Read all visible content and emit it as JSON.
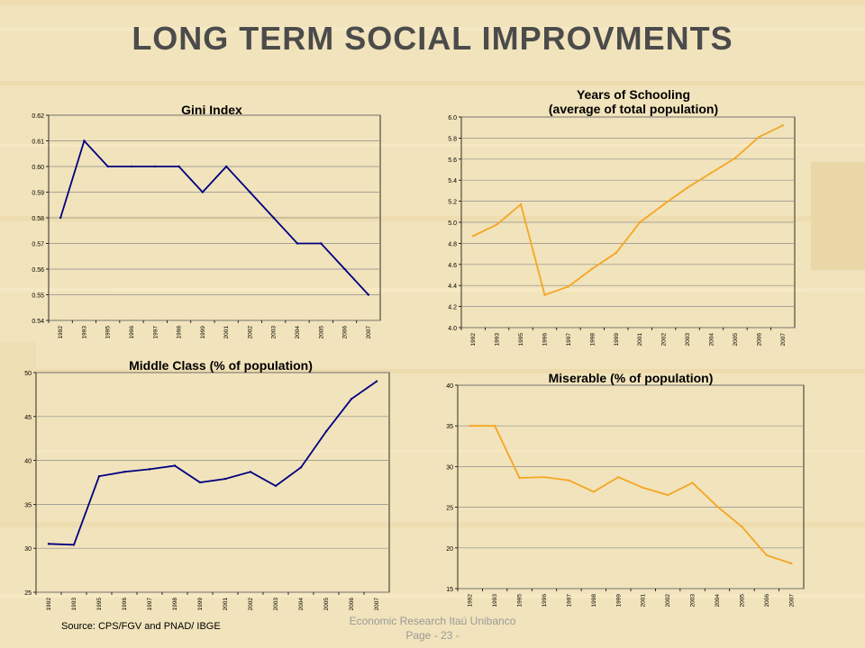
{
  "slide": {
    "title": "LONG TERM SOCIAL IMPROVMENTS",
    "source": "Source: CPS/FGV and PNAD/ IBGE",
    "footer_line1": "Economic Research Itaú Unibanco",
    "footer_line2": "Page - 23 -"
  },
  "colors": {
    "navy": "#000080",
    "orange": "#f5a623",
    "grid": "#808080",
    "background": "#f1e3bb"
  },
  "chart_data": [
    {
      "type": "line",
      "title": "Gini Index",
      "categories": [
        "1992",
        "1993",
        "1995",
        "1996",
        "1997",
        "1998",
        "1999",
        "2001",
        "2002",
        "2003",
        "2004",
        "2005",
        "2006",
        "2007"
      ],
      "values": [
        0.58,
        0.61,
        0.6,
        0.6,
        0.6,
        0.6,
        0.59,
        0.6,
        0.59,
        0.58,
        0.57,
        0.57,
        0.56,
        0.55
      ],
      "yticks": [
        "0.54",
        "0.55",
        "0.56",
        "0.57",
        "0.58",
        "0.59",
        "0.60",
        "0.61",
        "0.62"
      ],
      "ylim": [
        0.54,
        0.62
      ],
      "color": "#000080",
      "grid": true
    },
    {
      "type": "line",
      "title": "Years of Schooling",
      "subtitle": "(average of total population)",
      "categories": [
        "1992",
        "1993",
        "1995",
        "1996",
        "1997",
        "1998",
        "1999",
        "2001",
        "2002",
        "2003",
        "2004",
        "2005",
        "2006",
        "2007"
      ],
      "values": [
        4.87,
        4.98,
        5.17,
        4.31,
        4.39,
        4.56,
        4.71,
        5.0,
        5.17,
        5.33,
        5.47,
        5.61,
        5.81,
        5.92
      ],
      "yticks": [
        "4.0",
        "4.2",
        "4.4",
        "4.6",
        "4.8",
        "5.0",
        "5.2",
        "5.4",
        "5.6",
        "5.8",
        "6.0"
      ],
      "ylim": [
        4.0,
        6.0
      ],
      "color": "#f5a623",
      "grid": true
    },
    {
      "type": "line",
      "title": "Middle Class (% of population)",
      "categories": [
        "1992",
        "1993",
        "1995",
        "1996",
        "1997",
        "1998",
        "1999",
        "2001",
        "2002",
        "2003",
        "2004",
        "2005",
        "2006",
        "2007"
      ],
      "values": [
        30.5,
        30.4,
        38.2,
        38.7,
        39.0,
        39.4,
        37.5,
        37.9,
        38.7,
        37.1,
        39.2,
        43.3,
        47.0,
        49.0
      ],
      "yticks": [
        "25",
        "30",
        "35",
        "40",
        "45",
        "50"
      ],
      "ylim": [
        25,
        50
      ],
      "color": "#000080",
      "grid": true
    },
    {
      "type": "line",
      "title": "Miserable (% of population)",
      "categories": [
        "1992",
        "1993",
        "1995",
        "1996",
        "1997",
        "1998",
        "1999",
        "2001",
        "2002",
        "2003",
        "2004",
        "2005",
        "2006",
        "2007"
      ],
      "values": [
        35.0,
        35.0,
        28.6,
        28.7,
        28.3,
        26.9,
        28.7,
        27.4,
        26.5,
        28.0,
        25.1,
        22.6,
        19.1,
        18.1
      ],
      "yticks": [
        "15",
        "20",
        "25",
        "30",
        "35",
        "40"
      ],
      "ylim": [
        15,
        40
      ],
      "color": "#f5a623",
      "grid": true
    }
  ]
}
